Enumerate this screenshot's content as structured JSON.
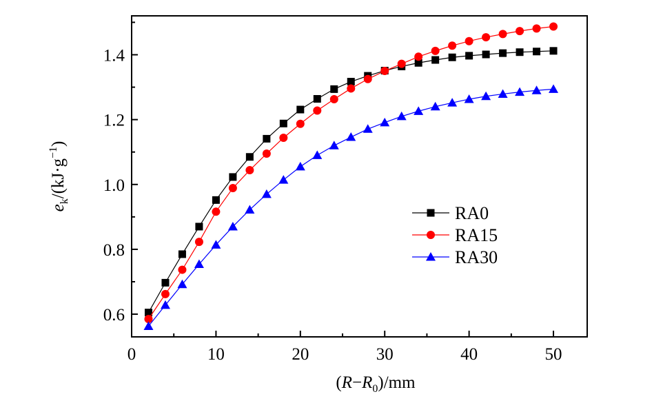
{
  "chart_data": {
    "type": "line",
    "title": "",
    "xlabel": "(R−R0)/mm",
    "ylabel": "ek/(kJ·g−1)",
    "xlabel_parts": {
      "open": "(",
      "var": "R",
      "dash": "−",
      "var2": "R",
      "sub": "0",
      "rest": ")/mm"
    },
    "ylabel_parts": {
      "var": "e",
      "sub": "k",
      "rest": "/(kJ·g",
      "sup": "−1",
      "close": ")"
    },
    "xlim": [
      0,
      54
    ],
    "ylim": [
      0.53,
      1.52
    ],
    "xticks": [
      0,
      10,
      20,
      30,
      40,
      50
    ],
    "yticks": [
      0.6,
      0.8,
      1.0,
      1.2,
      1.4
    ],
    "xtick_labels": [
      "0",
      "10",
      "20",
      "30",
      "40",
      "50"
    ],
    "ytick_labels": [
      "0.6",
      "0.8",
      "1.0",
      "1.2",
      "1.4"
    ],
    "grid": false,
    "legend_position": "center-right",
    "x": [
      2,
      4,
      6,
      8,
      10,
      12,
      14,
      16,
      18,
      20,
      22,
      24,
      26,
      28,
      30,
      32,
      34,
      36,
      38,
      40,
      42,
      44,
      46,
      48,
      50
    ],
    "series": [
      {
        "name": "RA0",
        "color": "#000000",
        "marker": "square",
        "values": [
          0.605,
          0.697,
          0.785,
          0.87,
          0.952,
          1.023,
          1.085,
          1.141,
          1.188,
          1.231,
          1.264,
          1.294,
          1.317,
          1.335,
          1.351,
          1.364,
          1.375,
          1.384,
          1.392,
          1.397,
          1.401,
          1.405,
          1.408,
          1.41,
          1.412
        ]
      },
      {
        "name": "RA15",
        "color": "#ff0000",
        "marker": "circle",
        "values": [
          0.585,
          0.662,
          0.737,
          0.823,
          0.916,
          0.989,
          1.044,
          1.095,
          1.144,
          1.187,
          1.228,
          1.263,
          1.296,
          1.325,
          1.35,
          1.372,
          1.394,
          1.412,
          1.428,
          1.442,
          1.454,
          1.464,
          1.473,
          1.481,
          1.487
        ]
      },
      {
        "name": "RA30",
        "color": "#0000ff",
        "marker": "triangle",
        "values": [
          0.563,
          0.628,
          0.692,
          0.754,
          0.814,
          0.87,
          0.922,
          0.97,
          1.014,
          1.055,
          1.09,
          1.12,
          1.146,
          1.171,
          1.191,
          1.21,
          1.226,
          1.24,
          1.252,
          1.263,
          1.272,
          1.279,
          1.285,
          1.29,
          1.294
        ]
      }
    ]
  }
}
